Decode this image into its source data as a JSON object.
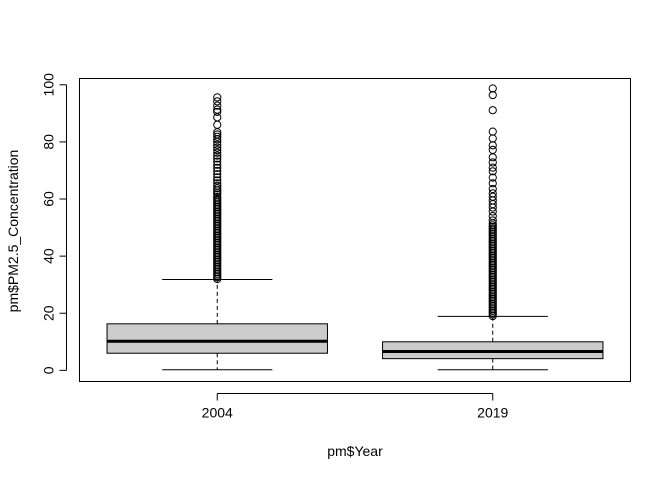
{
  "chart_data": {
    "type": "box",
    "title": "",
    "xlabel": "pm$Year",
    "ylabel": "pm$PM2.5_Concentration",
    "ylim": [
      -3.9,
      102.2
    ],
    "yticks": [
      0,
      20,
      40,
      60,
      80,
      100
    ],
    "grid": false,
    "legend": "none",
    "box_fill": "#cccccc",
    "categories": [
      "2004",
      "2019"
    ],
    "boxes": [
      {
        "label": "2004",
        "whisker_low": 0.2,
        "q1": 6.0,
        "median": 10.2,
        "q3": 16.3,
        "whisker_high": 31.8,
        "outliers": [
          32,
          32.6,
          33.2,
          33.8,
          34.4,
          35,
          35.6,
          36.2,
          36.8,
          37.4,
          38,
          38.6,
          39.2,
          39.8,
          40.4,
          41,
          41.6,
          42.2,
          42.8,
          43.4,
          44,
          44.6,
          45.2,
          45.8,
          46.4,
          47,
          47.6,
          48.2,
          48.8,
          49.4,
          50,
          50.6,
          51.2,
          51.8,
          52.4,
          53,
          53.6,
          54.2,
          54.8,
          55.4,
          56,
          56.6,
          57.2,
          57.8,
          58.4,
          59,
          59.6,
          60.2,
          60.8,
          61.6,
          62.3,
          63,
          63.8,
          64.6,
          65.5,
          66.5,
          67.6,
          68.7,
          69.8,
          70.9,
          72,
          73.1,
          74.2,
          75.2,
          76.2,
          77.1,
          78,
          79,
          80,
          80.9,
          81.8,
          82.6,
          83.4,
          86,
          88.6,
          90.5,
          91.3,
          92.7,
          94.2,
          95.6
        ]
      },
      {
        "label": "2019",
        "whisker_low": 0.2,
        "q1": 4.1,
        "median": 6.6,
        "q3": 10.0,
        "whisker_high": 18.9,
        "outliers": [
          19,
          19.6,
          20.2,
          20.8,
          21.4,
          22,
          22.6,
          23.2,
          23.8,
          24.4,
          25,
          25.6,
          26.2,
          26.8,
          27.4,
          28,
          28.6,
          29.2,
          29.8,
          30.4,
          31,
          31.6,
          32.2,
          32.8,
          33.4,
          34,
          34.6,
          35.2,
          35.8,
          36.4,
          37,
          37.6,
          38.2,
          38.8,
          39.4,
          40,
          40.6,
          41.2,
          41.8,
          42.4,
          43,
          43.6,
          44.2,
          44.8,
          45.4,
          46,
          46.6,
          47.2,
          47.8,
          48.4,
          49,
          49.6,
          50.2,
          50.8,
          51.5,
          52.5,
          54,
          55.6,
          57,
          58.2,
          59.5,
          60.8,
          62,
          63.5,
          65.5,
          67.5,
          69.7,
          71,
          72.8,
          74.6,
          77.2,
          78.8,
          81.2,
          83.6,
          91.1,
          96.4,
          98.7
        ]
      }
    ]
  }
}
